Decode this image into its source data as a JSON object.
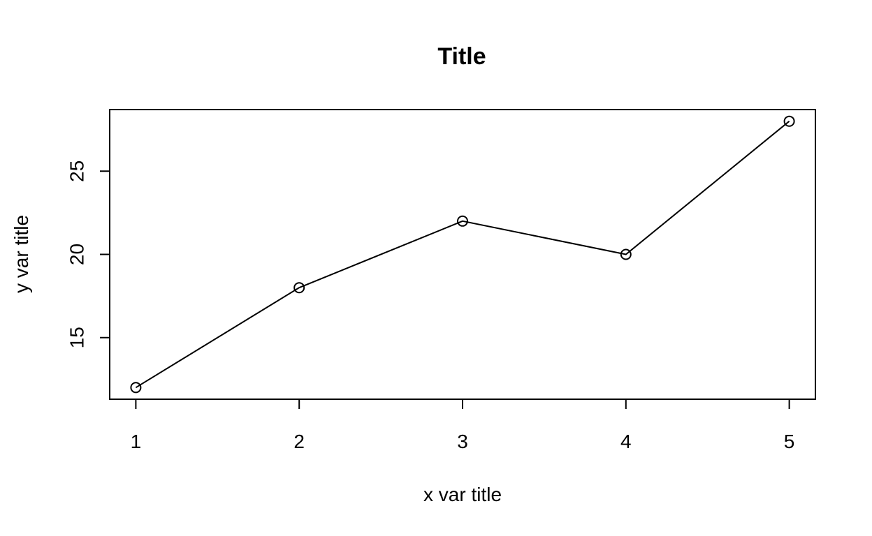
{
  "chart_data": {
    "type": "line",
    "title": "Title",
    "xlabel": "x var title",
    "ylabel": "y var title",
    "x": [
      1,
      2,
      3,
      4,
      5
    ],
    "series": [
      {
        "values": [
          12,
          18,
          22,
          20,
          28
        ]
      }
    ],
    "xlim": [
      0.84,
      5.16
    ],
    "ylim": [
      11.3,
      28.7
    ],
    "x_ticks": [
      1,
      2,
      3,
      4,
      5
    ],
    "y_ticks": [
      15,
      20,
      25
    ],
    "x_tick_labels": [
      "1",
      "2",
      "3",
      "4",
      "5"
    ],
    "y_tick_labels": [
      "15",
      "20",
      "25"
    ],
    "marker": "open-circle",
    "line_color": "#000000",
    "grid": false,
    "legend": "none"
  }
}
